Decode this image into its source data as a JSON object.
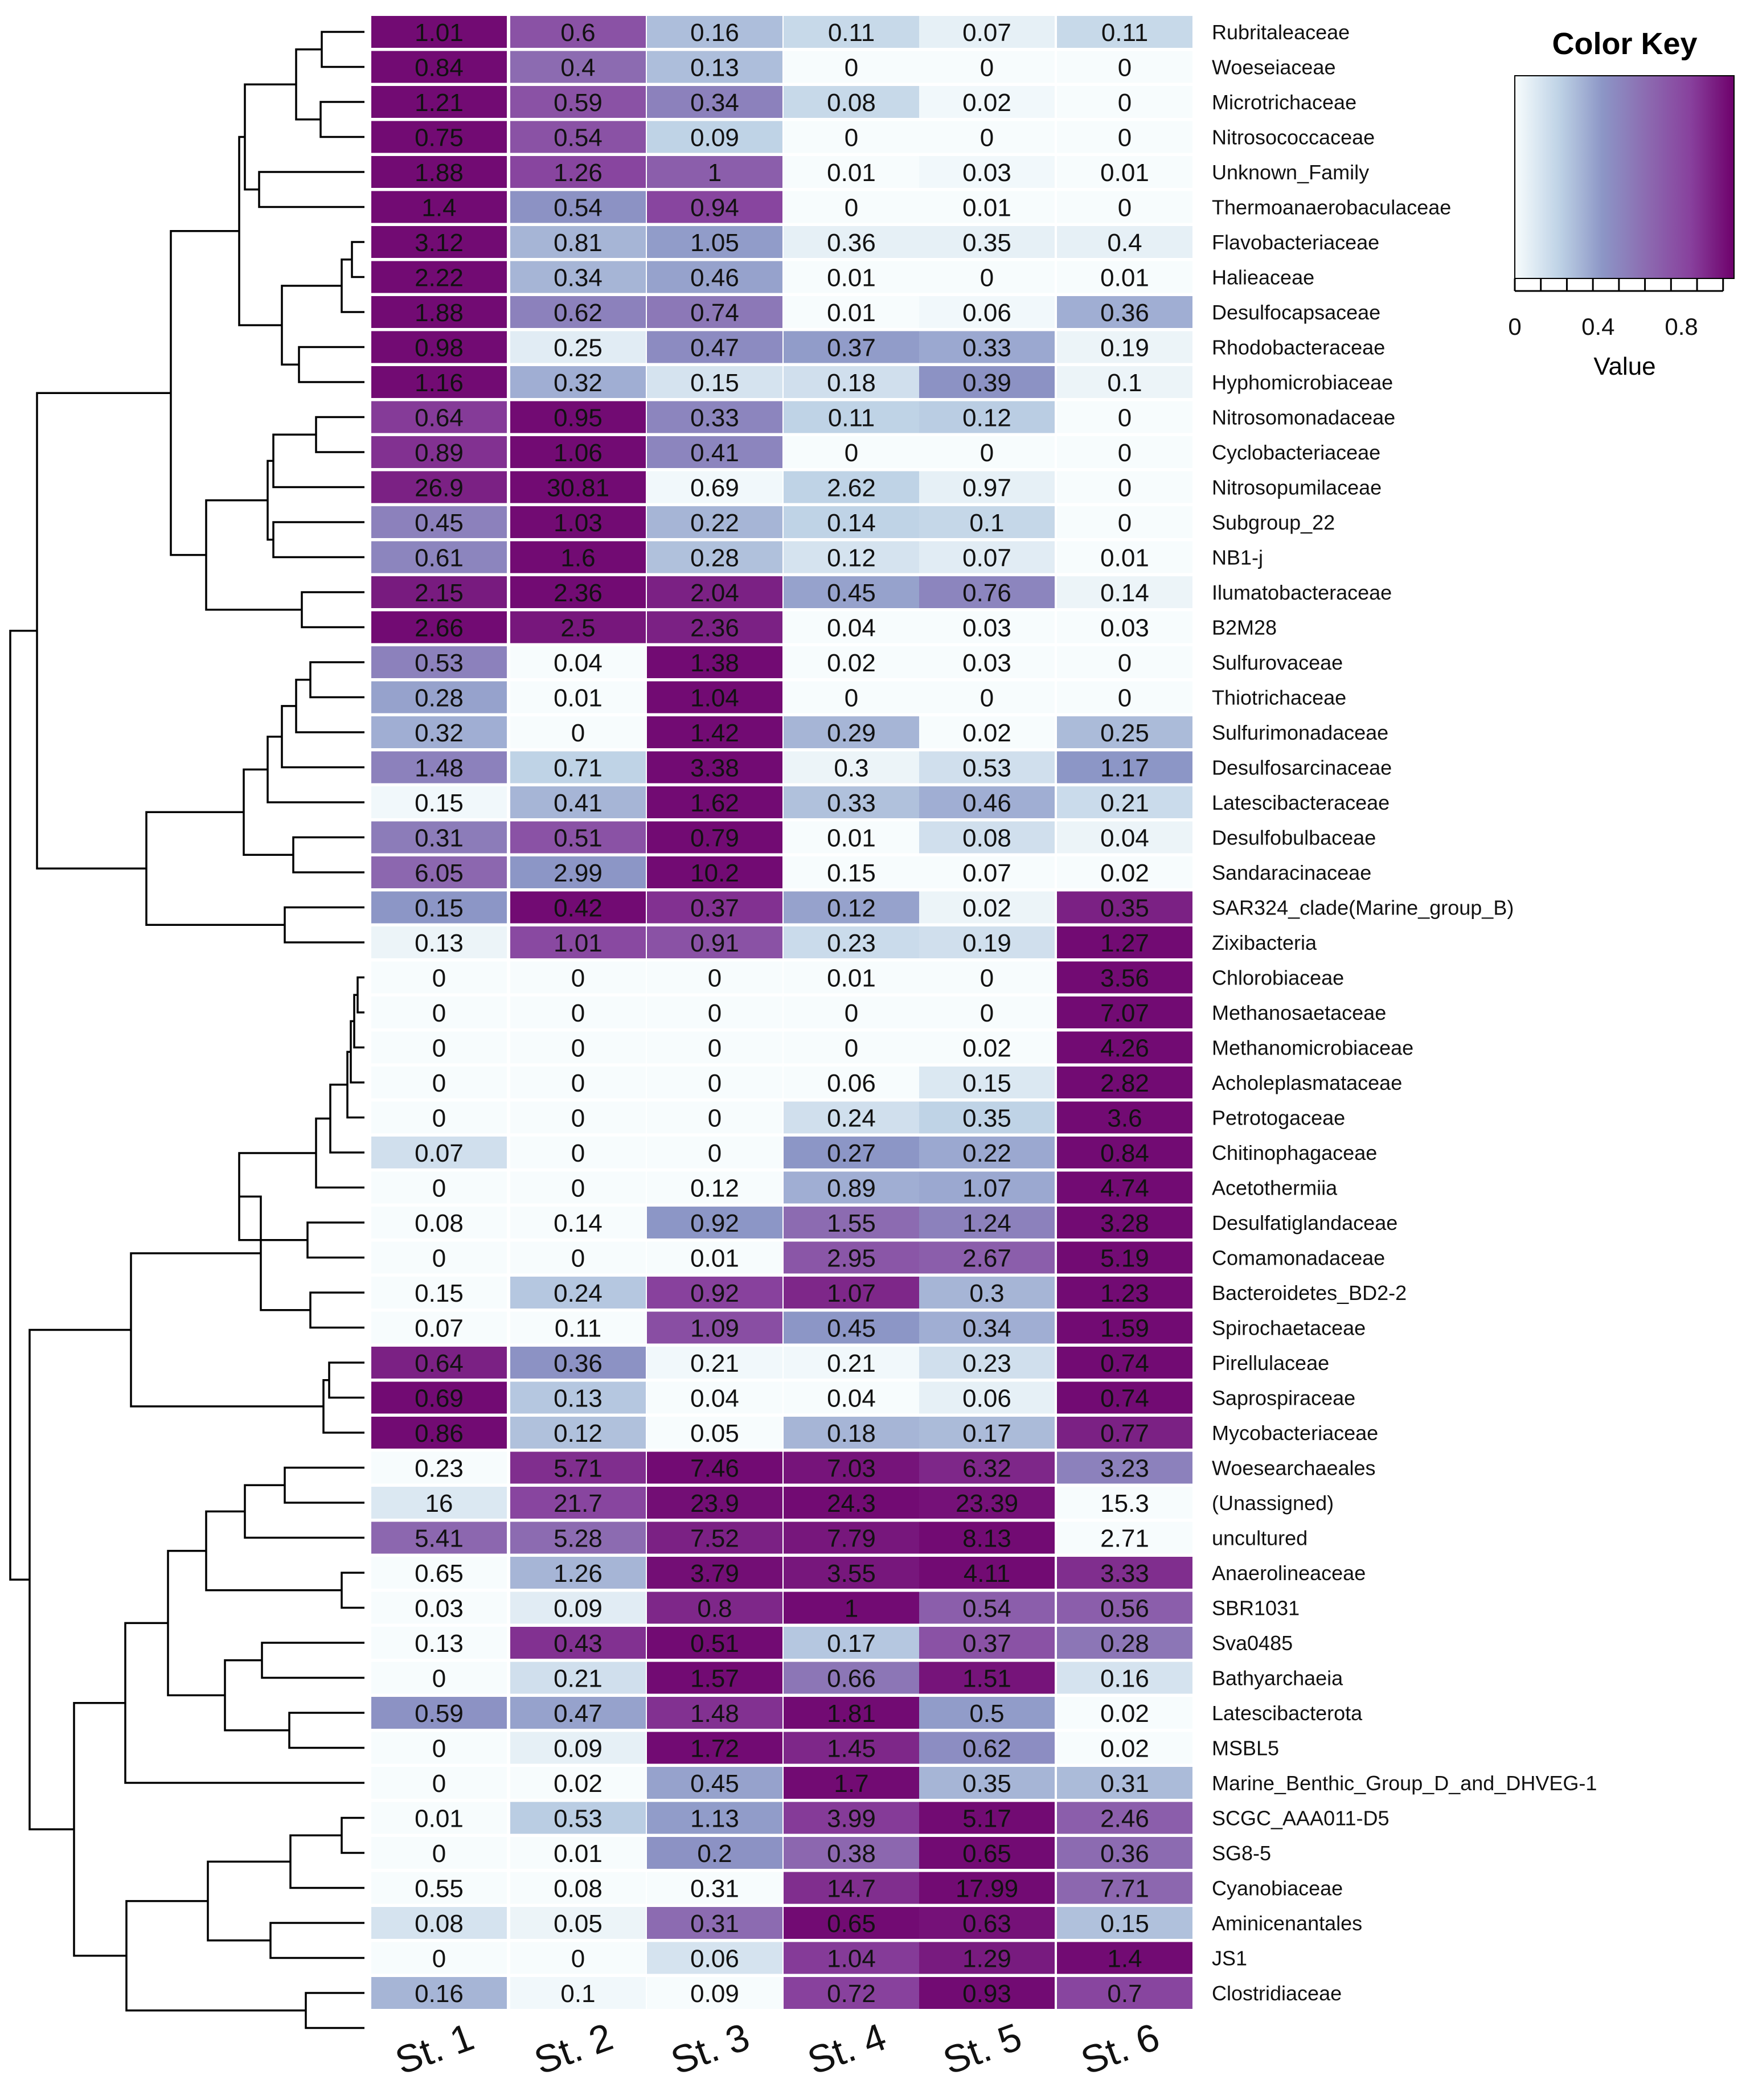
{
  "chart_data": {
    "type": "heatmap",
    "columns": [
      "St. 1",
      "St. 2",
      "St. 3",
      "St. 4",
      "St. 5",
      "St. 6"
    ],
    "rows": [
      {
        "name": "Rubritaleaceae",
        "values": [
          "1.01",
          "0.6",
          "0.16",
          "0.11",
          "0.07",
          "0.11"
        ],
        "levels": [
          0.97,
          0.72,
          0.27,
          0.17,
          0.06,
          0.17
        ]
      },
      {
        "name": "Woeseiaceae",
        "values": [
          "0.84",
          "0.4",
          "0.13",
          "0",
          "0",
          "0"
        ],
        "levels": [
          0.97,
          0.6,
          0.27,
          0,
          0,
          0
        ]
      },
      {
        "name": "Microtrichaceae",
        "values": [
          "1.21",
          "0.59",
          "0.34",
          "0.08",
          "0.02",
          "0"
        ],
        "levels": [
          0.97,
          0.72,
          0.5,
          0.17,
          0.02,
          0
        ]
      },
      {
        "name": "Nitrosococcaceae",
        "values": [
          "0.75",
          "0.54",
          "0.09",
          "0",
          "0",
          "0"
        ],
        "levels": [
          0.97,
          0.72,
          0.2,
          0,
          0,
          0
        ]
      },
      {
        "name": "Unknown_Family",
        "values": [
          "1.88",
          "1.26",
          "1",
          "0.01",
          "0.03",
          "0.01"
        ],
        "levels": [
          0.97,
          0.78,
          0.66,
          0,
          0.02,
          0
        ]
      },
      {
        "name": "Thermoanaerobaculaceae",
        "values": [
          "1.4",
          "0.54",
          "0.94",
          "0",
          "0.01",
          "0"
        ],
        "levels": [
          0.97,
          0.42,
          0.78,
          0,
          0,
          0
        ]
      },
      {
        "name": "Flavobacteriaceae",
        "values": [
          "3.12",
          "0.81",
          "1.05",
          "0.36",
          "0.35",
          "0.4"
        ],
        "levels": [
          0.97,
          0.3,
          0.38,
          0.06,
          0.06,
          0.06
        ]
      },
      {
        "name": "Halieaceae",
        "values": [
          "2.22",
          "0.34",
          "0.46",
          "0.01",
          "0",
          "0.01"
        ],
        "levels": [
          0.97,
          0.3,
          0.36,
          0,
          0,
          0
        ]
      },
      {
        "name": "Desulfocapsaceae",
        "values": [
          "1.88",
          "0.62",
          "0.74",
          "0.01",
          "0.06",
          "0.36"
        ],
        "levels": [
          0.97,
          0.5,
          0.54,
          0,
          0.02,
          0.32
        ]
      },
      {
        "name": "Rhodobacteraceae",
        "values": [
          "0.98",
          "0.25",
          "0.47",
          "0.37",
          "0.33",
          "0.19"
        ],
        "levels": [
          0.97,
          0.08,
          0.45,
          0.38,
          0.34,
          0.04
        ]
      },
      {
        "name": "Hyphomicrobiaceae",
        "values": [
          "1.16",
          "0.32",
          "0.15",
          "0.18",
          "0.39",
          "0.1"
        ],
        "levels": [
          0.97,
          0.32,
          0.12,
          0.14,
          0.42,
          0.04
        ]
      },
      {
        "name": "Nitrosomonadaceae",
        "values": [
          "0.64",
          "0.95",
          "0.33",
          "0.11",
          "0.12",
          "0"
        ],
        "levels": [
          0.82,
          0.97,
          0.48,
          0.2,
          0.22,
          0
        ]
      },
      {
        "name": "Cyclobacteriaceae",
        "values": [
          "0.89",
          "1.06",
          "0.41",
          "0",
          "0",
          "0"
        ],
        "levels": [
          0.85,
          0.97,
          0.48,
          0,
          0,
          0
        ]
      },
      {
        "name": "Nitrosopumilaceae",
        "values": [
          "26.9",
          "30.81",
          "0.69",
          "2.62",
          "0.97",
          "0"
        ],
        "levels": [
          0.9,
          0.97,
          0.02,
          0.2,
          0.06,
          0
        ]
      },
      {
        "name": "Subgroup_22",
        "values": [
          "0.45",
          "1.03",
          "0.22",
          "0.14",
          "0.1",
          "0"
        ],
        "levels": [
          0.5,
          0.97,
          0.3,
          0.2,
          0.18,
          0
        ]
      },
      {
        "name": "NB1-j",
        "values": [
          "0.61",
          "1.6",
          "0.28",
          "0.12",
          "0.07",
          "0.01"
        ],
        "levels": [
          0.48,
          0.97,
          0.26,
          0.12,
          0.08,
          0
        ]
      },
      {
        "name": "Ilumatobacteraceae",
        "values": [
          "2.15",
          "2.36",
          "2.04",
          "0.45",
          "0.76",
          "0.14"
        ],
        "levels": [
          0.92,
          0.97,
          0.9,
          0.36,
          0.48,
          0.04
        ]
      },
      {
        "name": "B2M28",
        "values": [
          "2.66",
          "2.5",
          "2.36",
          "0.04",
          "0.03",
          "0.03"
        ],
        "levels": [
          0.97,
          0.93,
          0.9,
          0,
          0,
          0
        ]
      },
      {
        "name": "Sulfurovaceae",
        "values": [
          "0.53",
          "0.04",
          "1.38",
          "0.02",
          "0.03",
          "0"
        ],
        "levels": [
          0.5,
          0,
          0.97,
          0,
          0,
          0
        ]
      },
      {
        "name": "Thiotrichaceae",
        "values": [
          "0.28",
          "0.01",
          "1.04",
          "0",
          "0",
          "0"
        ],
        "levels": [
          0.36,
          0,
          0.97,
          0,
          0,
          0
        ]
      },
      {
        "name": "Sulfurimonadaceae",
        "values": [
          "0.32",
          "0",
          "1.42",
          "0.29",
          "0.02",
          "0.25"
        ],
        "levels": [
          0.32,
          0,
          0.97,
          0.3,
          0,
          0.28
        ]
      },
      {
        "name": "Desulfosarcinaceae",
        "values": [
          "1.48",
          "0.71",
          "3.38",
          "0.3",
          "0.53",
          "1.17"
        ],
        "levels": [
          0.5,
          0.2,
          0.97,
          0.04,
          0.14,
          0.4
        ]
      },
      {
        "name": "Latescibacteraceae",
        "values": [
          "0.15",
          "0.41",
          "1.62",
          "0.33",
          "0.46",
          "0.21"
        ],
        "levels": [
          0.02,
          0.3,
          0.97,
          0.26,
          0.32,
          0.16
        ]
      },
      {
        "name": "Desulfobulbaceae",
        "values": [
          "0.31",
          "0.51",
          "0.79",
          "0.01",
          "0.08",
          "0.04"
        ],
        "levels": [
          0.52,
          0.72,
          0.97,
          0,
          0.14,
          0.04
        ]
      },
      {
        "name": "Sandaracinaceae",
        "values": [
          "6.05",
          "2.99",
          "10.2",
          "0.15",
          "0.07",
          "0.02"
        ],
        "levels": [
          0.62,
          0.4,
          0.97,
          0,
          0,
          0
        ]
      },
      {
        "name": "SAR324_clade(Marine_group_B)",
        "values": [
          "0.15",
          "0.42",
          "0.37",
          "0.12",
          "0.02",
          "0.35"
        ],
        "levels": [
          0.4,
          0.97,
          0.85,
          0.36,
          0.04,
          0.9
        ]
      },
      {
        "name": "Zixibacteria",
        "values": [
          "0.13",
          "1.01",
          "0.91",
          "0.23",
          "0.19",
          "1.27"
        ],
        "levels": [
          0.04,
          0.76,
          0.72,
          0.16,
          0.14,
          0.97
        ]
      },
      {
        "name": "Chlorobiaceae",
        "values": [
          "0",
          "0",
          "0",
          "0.01",
          "0",
          "3.56"
        ],
        "levels": [
          0,
          0,
          0,
          0,
          0,
          0.97
        ]
      },
      {
        "name": "Methanosaetaceae",
        "values": [
          "0",
          "0",
          "0",
          "0",
          "0",
          "7.07"
        ],
        "levels": [
          0,
          0,
          0,
          0,
          0,
          0.97
        ]
      },
      {
        "name": "Methanomicrobiaceae",
        "values": [
          "0",
          "0",
          "0",
          "0",
          "0.02",
          "4.26"
        ],
        "levels": [
          0,
          0,
          0,
          0,
          0,
          0.97
        ]
      },
      {
        "name": "Acholeplasmataceae",
        "values": [
          "0",
          "0",
          "0",
          "0.06",
          "0.15",
          "2.82"
        ],
        "levels": [
          0,
          0,
          0,
          0,
          0.1,
          0.97
        ]
      },
      {
        "name": "Petrotogaceae",
        "values": [
          "0",
          "0",
          "0",
          "0.24",
          "0.35",
          "3.6"
        ],
        "levels": [
          0,
          0,
          0,
          0.14,
          0.2,
          0.97
        ]
      },
      {
        "name": "Chitinophagaceae",
        "values": [
          "0.07",
          "0",
          "0",
          "0.27",
          "0.22",
          "0.84"
        ],
        "levels": [
          0.14,
          0,
          0,
          0.4,
          0.34,
          0.97
        ]
      },
      {
        "name": "Acetothermiia",
        "values": [
          "0",
          "0",
          "0.12",
          "0.89",
          "1.07",
          "4.74"
        ],
        "levels": [
          0,
          0,
          0,
          0.32,
          0.34,
          0.97
        ]
      },
      {
        "name": "Desulfatiglandaceae",
        "values": [
          "0.08",
          "0.14",
          "0.92",
          "1.55",
          "1.24",
          "3.28"
        ],
        "levels": [
          0,
          0,
          0.4,
          0.6,
          0.5,
          0.97
        ]
      },
      {
        "name": "Comamonadaceae",
        "values": [
          "0",
          "0",
          "0.01",
          "2.95",
          "2.67",
          "5.19"
        ],
        "levels": [
          0,
          0,
          0,
          0.7,
          0.66,
          0.97
        ]
      },
      {
        "name": "Bacteroidetes_BD2-2",
        "values": [
          "0.15",
          "0.24",
          "0.92",
          "1.07",
          "0.3",
          "1.23"
        ],
        "levels": [
          0,
          0.24,
          0.8,
          0.88,
          0.3,
          0.97
        ]
      },
      {
        "name": "Spirochaetaceae",
        "values": [
          "0.07",
          "0.11",
          "1.09",
          "0.45",
          "0.34",
          "1.59"
        ],
        "levels": [
          0,
          0,
          0.74,
          0.4,
          0.32,
          0.97
        ]
      },
      {
        "name": "Pirellulaceae",
        "values": [
          "0.64",
          "0.36",
          "0.21",
          "0.21",
          "0.23",
          "0.74"
        ],
        "levels": [
          0.9,
          0.42,
          0.02,
          0.02,
          0.14,
          0.97
        ]
      },
      {
        "name": "Saprospiraceae",
        "values": [
          "0.69",
          "0.13",
          "0.04",
          "0.04",
          "0.06",
          "0.74"
        ],
        "levels": [
          0.97,
          0.24,
          0,
          0,
          0.06,
          0.97
        ]
      },
      {
        "name": "Mycobacteriaceae",
        "values": [
          "0.86",
          "0.12",
          "0.05",
          "0.18",
          "0.17",
          "0.77"
        ],
        "levels": [
          0.97,
          0.26,
          0,
          0.3,
          0.28,
          0.9
        ]
      },
      {
        "name": "Woesearchaeales",
        "values": [
          "0.23",
          "5.71",
          "7.46",
          "7.03",
          "6.32",
          "3.23"
        ],
        "levels": [
          0,
          0.86,
          0.97,
          0.94,
          0.88,
          0.5
        ]
      },
      {
        "name": "(Unassigned)",
        "values": [
          "16",
          "21.7",
          "23.9",
          "24.3",
          "23.39",
          "15.3"
        ],
        "levels": [
          0.1,
          0.78,
          0.96,
          0.97,
          0.95,
          0
        ]
      },
      {
        "name": "uncultured",
        "values": [
          "5.41",
          "5.28",
          "7.52",
          "7.79",
          "8.13",
          "2.71"
        ],
        "levels": [
          0.62,
          0.6,
          0.9,
          0.93,
          0.97,
          0
        ]
      },
      {
        "name": "Anaerolineaceae",
        "values": [
          "0.65",
          "1.26",
          "3.79",
          "3.55",
          "4.11",
          "3.33"
        ],
        "levels": [
          0,
          0.3,
          0.96,
          0.93,
          0.97,
          0.86
        ]
      },
      {
        "name": "SBR1031",
        "values": [
          "0.03",
          "0.09",
          "0.8",
          "1",
          "0.54",
          "0.56"
        ],
        "levels": [
          0,
          0.08,
          0.88,
          0.97,
          0.66,
          0.66
        ]
      },
      {
        "name": "Sva0485",
        "values": [
          "0.13",
          "0.43",
          "0.51",
          "0.17",
          "0.37",
          "0.28"
        ],
        "levels": [
          0,
          0.85,
          0.97,
          0.24,
          0.72,
          0.55
        ]
      },
      {
        "name": "Bathyarchaeia",
        "values": [
          "0",
          "0.21",
          "1.57",
          "0.66",
          "1.51",
          "0.16"
        ],
        "levels": [
          0,
          0.14,
          0.97,
          0.55,
          0.94,
          0.12
        ]
      },
      {
        "name": "Latescibacterota",
        "values": [
          "0.59",
          "0.47",
          "1.48",
          "1.81",
          "0.5",
          "0.02"
        ],
        "levels": [
          0.42,
          0.36,
          0.85,
          0.97,
          0.38,
          0
        ]
      },
      {
        "name": "MSBL5",
        "values": [
          "0",
          "0.09",
          "1.72",
          "1.45",
          "0.62",
          "0.02"
        ],
        "levels": [
          0,
          0.06,
          0.97,
          0.88,
          0.44,
          0
        ]
      },
      {
        "name": "Marine_Benthic_Group_D_and_DHVEG-1",
        "values": [
          "0",
          "0.02",
          "0.45",
          "1.7",
          "0.35",
          "0.31"
        ],
        "levels": [
          0,
          0,
          0.36,
          0.97,
          0.3,
          0.28
        ]
      },
      {
        "name": "SCGC_AAA011-D5",
        "values": [
          "0.01",
          "0.53",
          "1.13",
          "3.99",
          "5.17",
          "2.46"
        ],
        "levels": [
          0,
          0.22,
          0.38,
          0.82,
          0.97,
          0.66
        ]
      },
      {
        "name": "SG8-5",
        "values": [
          "0",
          "0.01",
          "0.2",
          "0.38",
          "0.65",
          "0.36"
        ],
        "levels": [
          0,
          0,
          0.42,
          0.62,
          0.97,
          0.6
        ]
      },
      {
        "name": "Cyanobiaceae",
        "values": [
          "0.55",
          "0.08",
          "0.31",
          "14.7",
          "17.99",
          "7.71"
        ],
        "levels": [
          0,
          0,
          0,
          0.86,
          0.97,
          0.62
        ]
      },
      {
        "name": "Aminicenantales",
        "values": [
          "0.08",
          "0.05",
          "0.31",
          "0.65",
          "0.63",
          "0.15"
        ],
        "levels": [
          0.12,
          0.04,
          0.6,
          0.97,
          0.95,
          0.26
        ]
      },
      {
        "name": "JS1",
        "values": [
          "0",
          "0",
          "0.06",
          "1.04",
          "1.29",
          "1.4"
        ],
        "levels": [
          0,
          0,
          0.12,
          0.82,
          0.92,
          0.97
        ]
      },
      {
        "name": "Clostridiaceae",
        "values": [
          "0.16",
          "0.1",
          "0.09",
          "0.72",
          "0.93",
          "0.7"
        ],
        "levels": [
          0.3,
          0.02,
          0,
          0.8,
          0.97,
          0.78
        ]
      }
    ],
    "color_key": {
      "title": "Color Key",
      "xlabel": "Value",
      "ticks": [
        "0",
        "0.4",
        "0.8"
      ],
      "range": [
        0,
        1
      ],
      "colors": [
        "#f7fcfd",
        "#bfd3e6",
        "#8c96c6",
        "#8c6bb1",
        "#88419d",
        "#6e016b"
      ]
    },
    "dendrogram": "hierarchical clustering of rows (left side)"
  }
}
